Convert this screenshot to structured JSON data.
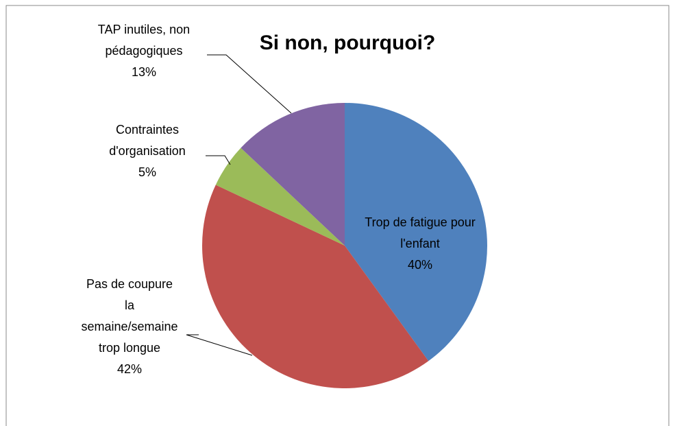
{
  "chart_data": {
    "type": "pie",
    "title": "Si non, pourquoi?",
    "categories": [
      "Trop de fatigue pour l'enfant",
      "Pas de coupure la semaine/semaine trop longue",
      "Contraintes d'organisation",
      "TAP inutiles, non pédagogiques"
    ],
    "values": [
      40,
      42,
      5,
      13
    ],
    "value_labels": [
      "40%",
      "42%",
      "5%",
      "13%"
    ],
    "colors": [
      "#4f81bd",
      "#c0504d",
      "#9bbb59",
      "#8064a2"
    ]
  }
}
